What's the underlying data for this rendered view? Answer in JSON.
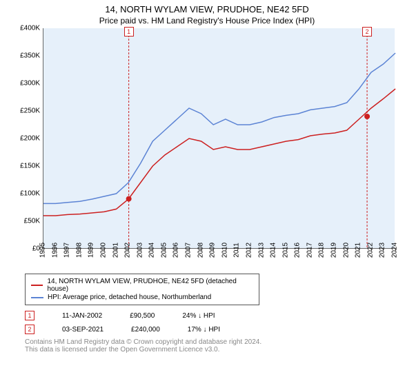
{
  "title": "14, NORTH WYLAM VIEW, PRUDHOE, NE42 5FD",
  "subtitle": "Price paid vs. HM Land Registry's House Price Index (HPI)",
  "chart": {
    "type": "line",
    "background_fill": "#e6f0fa",
    "y": {
      "min": 0,
      "max": 400000,
      "step": 50000,
      "labels": [
        "£0",
        "£50K",
        "£100K",
        "£150K",
        "£200K",
        "£250K",
        "£300K",
        "£350K",
        "£400K"
      ],
      "fontsize": 10
    },
    "x": {
      "labels": [
        "1995",
        "1996",
        "1997",
        "1998",
        "1999",
        "2000",
        "2001",
        "2002",
        "2003",
        "2004",
        "2005",
        "2006",
        "2007",
        "2008",
        "2009",
        "2010",
        "2011",
        "2012",
        "2013",
        "2014",
        "2015",
        "2016",
        "2017",
        "2018",
        "2019",
        "2020",
        "2021",
        "2022",
        "2023",
        "2024"
      ],
      "fontsize": 10,
      "rotate": -90
    },
    "series": [
      {
        "name": "property",
        "color": "#cc1f1f",
        "width": 1.5,
        "points": [
          [
            0,
            60000
          ],
          [
            1,
            60000
          ],
          [
            2,
            62000
          ],
          [
            3,
            63000
          ],
          [
            4,
            65000
          ],
          [
            5,
            67000
          ],
          [
            6,
            72000
          ],
          [
            7,
            90000
          ],
          [
            8,
            120000
          ],
          [
            9,
            150000
          ],
          [
            10,
            170000
          ],
          [
            11,
            185000
          ],
          [
            12,
            200000
          ],
          [
            13,
            195000
          ],
          [
            14,
            180000
          ],
          [
            15,
            185000
          ],
          [
            16,
            180000
          ],
          [
            17,
            180000
          ],
          [
            18,
            185000
          ],
          [
            19,
            190000
          ],
          [
            20,
            195000
          ],
          [
            21,
            198000
          ],
          [
            22,
            205000
          ],
          [
            23,
            208000
          ],
          [
            24,
            210000
          ],
          [
            25,
            215000
          ],
          [
            26,
            235000
          ],
          [
            27,
            255000
          ],
          [
            28,
            272000
          ],
          [
            29,
            290000
          ]
        ]
      },
      {
        "name": "hpi",
        "color": "#5b83d4",
        "width": 1.5,
        "points": [
          [
            0,
            82000
          ],
          [
            1,
            82000
          ],
          [
            2,
            84000
          ],
          [
            3,
            86000
          ],
          [
            4,
            90000
          ],
          [
            5,
            95000
          ],
          [
            6,
            100000
          ],
          [
            7,
            120000
          ],
          [
            8,
            155000
          ],
          [
            9,
            195000
          ],
          [
            10,
            215000
          ],
          [
            11,
            235000
          ],
          [
            12,
            255000
          ],
          [
            13,
            245000
          ],
          [
            14,
            225000
          ],
          [
            15,
            235000
          ],
          [
            16,
            225000
          ],
          [
            17,
            225000
          ],
          [
            18,
            230000
          ],
          [
            19,
            238000
          ],
          [
            20,
            242000
          ],
          [
            21,
            245000
          ],
          [
            22,
            252000
          ],
          [
            23,
            255000
          ],
          [
            24,
            258000
          ],
          [
            25,
            265000
          ],
          [
            26,
            290000
          ],
          [
            27,
            320000
          ],
          [
            28,
            335000
          ],
          [
            29,
            355000
          ]
        ]
      }
    ],
    "vlines": [
      {
        "x": 7.03,
        "color": "#cc1f1f",
        "dash": "3,2",
        "badge": "1"
      },
      {
        "x": 26.67,
        "color": "#cc1f1f",
        "dash": "3,2",
        "badge": "2"
      }
    ],
    "dot_markers": [
      {
        "x": 7.03,
        "y": 90500,
        "color": "#cc1f1f"
      },
      {
        "x": 26.67,
        "y": 240000,
        "color": "#cc1f1f"
      }
    ]
  },
  "legend": [
    {
      "color": "#cc1f1f",
      "label": "14, NORTH WYLAM VIEW, PRUDHOE, NE42 5FD (detached house)"
    },
    {
      "color": "#5b83d4",
      "label": "HPI: Average price, detached house, Northumberland"
    }
  ],
  "markers": [
    {
      "badge": "1",
      "date": "11-JAN-2002",
      "price": "£90,500",
      "delta": "24% ↓ HPI"
    },
    {
      "badge": "2",
      "date": "03-SEP-2021",
      "price": "£240,000",
      "delta": "17% ↓ HPI"
    }
  ],
  "footer1": "Contains HM Land Registry data © Crown copyright and database right 2024.",
  "footer2": "This data is licensed under the Open Government Licence v3.0."
}
